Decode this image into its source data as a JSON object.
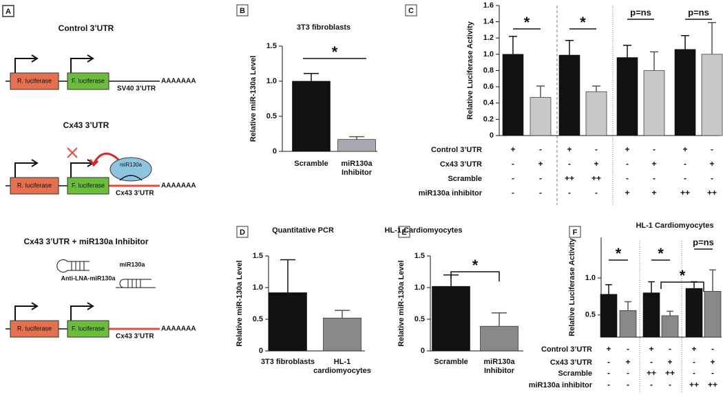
{
  "diagram": {
    "panel": "A",
    "rows": [
      {
        "title": "Control 3’UTR",
        "r_luc": "R. luciferase",
        "f_luc": "F. luciferase",
        "utr": "SV40 3’UTR",
        "tail": "AAAAAAA"
      },
      {
        "title": "Cx43 3’UTR",
        "r_luc": "R. luciferase",
        "f_luc": "F. luciferase",
        "utr": "Cx43 3’UTR",
        "tail": "AAAAAAA",
        "mirna": "miR130a"
      },
      {
        "title": "Cx43 3’UTR + miR130a Inhibitor",
        "r_luc": "R. luciferase",
        "f_luc": "F. luciferase",
        "utr": "Cx43 3’UTR",
        "tail": "AAAAAAA",
        "inhibitor": "Anti-LNA-miR130a",
        "mirna": "miR130a"
      }
    ]
  },
  "chart_data": [
    {
      "type": "bar",
      "panel": "B",
      "title": "3T3 fibroblasts",
      "ylabel": "Relative miR-130a Level",
      "categories": [
        "Scramble",
        "miR130a Inhibitor"
      ],
      "values": [
        1.0,
        0.17
      ],
      "errors": [
        0.11,
        0.04
      ],
      "colors": [
        "#111111",
        "#a9a8b0"
      ],
      "ylim": [
        0,
        1.5
      ],
      "yticks": [
        0,
        0.5,
        {
          "value": 1,
          "label": "1.0"
        },
        1.5
      ],
      "annotations": [
        "*"
      ]
    },
    {
      "type": "bar",
      "panel": "C",
      "ylabel": "Relative Luciferase Activity",
      "values": [
        1.0,
        0.47,
        0.99,
        0.54,
        0.96,
        0.8,
        1.06,
        1.0
      ],
      "errors": [
        0.22,
        0.14,
        0.18,
        0.07,
        0.15,
        0.23,
        0.17,
        0.39
      ],
      "colors": [
        "#111111",
        "#c8c8c8",
        "#111111",
        "#c8c8c8",
        "#111111",
        "#c8c8c8",
        "#111111",
        "#c8c8c8"
      ],
      "ylim": [
        0,
        1.6
      ],
      "yticks": [
        0,
        0.2,
        0.4,
        0.6,
        0.8,
        {
          "value": 1,
          "label": "1.0"
        },
        1.2,
        1.4,
        1.6
      ],
      "annotations": [
        "*",
        "*",
        "p=ns",
        "p=ns"
      ],
      "table": {
        "rows": [
          {
            "label": "Control 3’UTR",
            "cells": [
              "+",
              "-",
              "+",
              "-",
              "+",
              "-",
              "+",
              "-"
            ]
          },
          {
            "label": "Cx43 3’UTR",
            "cells": [
              "-",
              "+",
              "-",
              "+",
              "-",
              "+",
              "-",
              "+"
            ]
          },
          {
            "label": "Scramble",
            "cells": [
              "-",
              "-",
              "++",
              "++",
              "-",
              "-",
              "-",
              "-"
            ]
          },
          {
            "label": "miR130a inhibitor",
            "cells": [
              "-",
              "-",
              "-",
              "-",
              "+",
              "+",
              "++",
              "++"
            ]
          }
        ]
      }
    },
    {
      "type": "bar",
      "panel": "D",
      "title": "Quantitative PCR",
      "ylabel": "Relative miR-130a Level",
      "categories": [
        "3T3 fibroblasts",
        "HL-1 cardiomyocytes"
      ],
      "values": [
        0.92,
        0.52
      ],
      "errors": [
        0.52,
        0.12
      ],
      "colors": [
        "#111111",
        "#888888"
      ],
      "ylim": [
        0,
        1.5
      ],
      "yticks": [
        0,
        0.5,
        {
          "value": 1,
          "label": "1.0"
        },
        1.5
      ]
    },
    {
      "type": "bar",
      "panel": "E",
      "title": "HL-1 Cardiomyocytes",
      "ylabel": "Relative miR-130a Level",
      "categories": [
        "Scramble",
        "miR130a Inhibitor"
      ],
      "values": [
        1.02,
        0.39
      ],
      "errors": [
        0.18,
        0.21
      ],
      "colors": [
        "#111111",
        "#888888"
      ],
      "ylim": [
        0,
        1.5
      ],
      "yticks": [
        0,
        0.5,
        {
          "value": 1,
          "label": "1.0"
        },
        1.5
      ],
      "annotations": [
        "*"
      ]
    },
    {
      "type": "bar",
      "panel": "F",
      "title": "HL-1 Cardiomyocytes",
      "ylabel": "Relative Luciferase Activity",
      "values": [
        0.78,
        0.56,
        0.8,
        0.49,
        0.86,
        0.82
      ],
      "errors": [
        0.13,
        0.12,
        0.15,
        0.06,
        0.09,
        0.29
      ],
      "colors": [
        "#111111",
        "#888888",
        "#111111",
        "#888888",
        "#111111",
        "#888888"
      ],
      "ylim": [
        0.2,
        1.55
      ],
      "yticks": [
        0.5,
        {
          "value": 1,
          "label": "1.0"
        }
      ],
      "annotations": [
        "*",
        "*",
        "p=ns",
        "*"
      ],
      "table": {
        "rows": [
          {
            "label": "Control 3’UTR",
            "cells": [
              "+",
              "-",
              "+",
              "-",
              "+",
              "-"
            ]
          },
          {
            "label": "Cx43 3’UTR",
            "cells": [
              "-",
              "+",
              "-",
              "+",
              "-",
              "+"
            ]
          },
          {
            "label": "Scramble",
            "cells": [
              "-",
              "-",
              "++",
              "++",
              "-",
              "-"
            ]
          },
          {
            "label": "miR130a inhibitor",
            "cells": [
              "-",
              "-",
              "-",
              "-",
              "++",
              "++"
            ]
          }
        ]
      }
    }
  ]
}
